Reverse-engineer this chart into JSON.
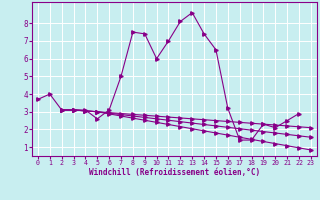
{
  "xlabel": "Windchill (Refroidissement éolien,°C)",
  "bg_color": "#c8eef0",
  "grid_color": "#ffffff",
  "line_color": "#880088",
  "xlim": [
    -0.5,
    23.5
  ],
  "ylim": [
    0.5,
    9.2
  ],
  "yticks": [
    1,
    2,
    3,
    4,
    5,
    6,
    7,
    8
  ],
  "xticks": [
    0,
    1,
    2,
    3,
    4,
    5,
    6,
    7,
    8,
    9,
    10,
    11,
    12,
    13,
    14,
    15,
    16,
    17,
    18,
    19,
    20,
    21,
    22,
    23
  ],
  "lines": [
    {
      "x": [
        0,
        1,
        2,
        3,
        4,
        5,
        6,
        7,
        8,
        9,
        10,
        11,
        12,
        13,
        14,
        15,
        16,
        17,
        18,
        19,
        20,
        21,
        22
      ],
      "y": [
        3.7,
        4.0,
        3.1,
        3.1,
        3.1,
        2.6,
        3.1,
        5.0,
        7.5,
        7.4,
        6.0,
        7.0,
        8.1,
        8.6,
        7.4,
        6.5,
        3.2,
        1.4,
        1.4,
        2.3,
        2.1,
        2.5,
        2.9
      ]
    },
    {
      "x": [
        2,
        3,
        4,
        5,
        6,
        7,
        8,
        9,
        10,
        11,
        12,
        13,
        14,
        15,
        16,
        17,
        18,
        19,
        20,
        21,
        22,
        23
      ],
      "y": [
        3.1,
        3.1,
        3.05,
        3.0,
        2.95,
        2.9,
        2.85,
        2.8,
        2.75,
        2.7,
        2.65,
        2.6,
        2.55,
        2.5,
        2.45,
        2.4,
        2.35,
        2.3,
        2.25,
        2.2,
        2.15,
        2.1
      ]
    },
    {
      "x": [
        2,
        3,
        4,
        5,
        6,
        7,
        8,
        9,
        10,
        11,
        12,
        13,
        14,
        15,
        16,
        17,
        18,
        19,
        20,
        21,
        22,
        23
      ],
      "y": [
        3.1,
        3.1,
        3.05,
        3.0,
        2.92,
        2.84,
        2.76,
        2.68,
        2.6,
        2.52,
        2.44,
        2.36,
        2.28,
        2.2,
        2.12,
        2.04,
        1.96,
        1.88,
        1.8,
        1.72,
        1.64,
        1.56
      ]
    },
    {
      "x": [
        2,
        3,
        4,
        5,
        6,
        7,
        8,
        9,
        10,
        11,
        12,
        13,
        14,
        15,
        16,
        17,
        18,
        19,
        20,
        21,
        22,
        23
      ],
      "y": [
        3.1,
        3.1,
        3.05,
        3.0,
        2.88,
        2.76,
        2.64,
        2.52,
        2.4,
        2.28,
        2.16,
        2.04,
        1.92,
        1.8,
        1.68,
        1.56,
        1.44,
        1.32,
        1.2,
        1.08,
        0.96,
        0.84
      ]
    }
  ]
}
